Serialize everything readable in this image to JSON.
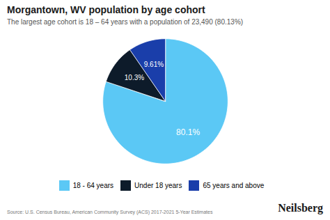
{
  "chart_data": {
    "type": "pie",
    "title": "Morgantown, WV population by age cohort",
    "subtitle": "The largest age cohort is 18 – 64 years with a population of 23,490 (80.13%)",
    "categories": [
      "18 - 64 years",
      "Under 18 years",
      "65 years and above"
    ],
    "values": [
      80.1,
      10.3,
      9.61
    ],
    "value_labels": [
      "80.1%",
      "10.3%",
      "9.61%"
    ],
    "data_labels": true,
    "colors": [
      "#5BC8F5",
      "#0D1B2A",
      "#1A3EAA"
    ],
    "legend": "bottom",
    "annotations": [
      "Source: U.S. Census Bureau, American Community Survey (ACS) 2017-2021 5-Year Estimates",
      "Neilsberg"
    ]
  }
}
